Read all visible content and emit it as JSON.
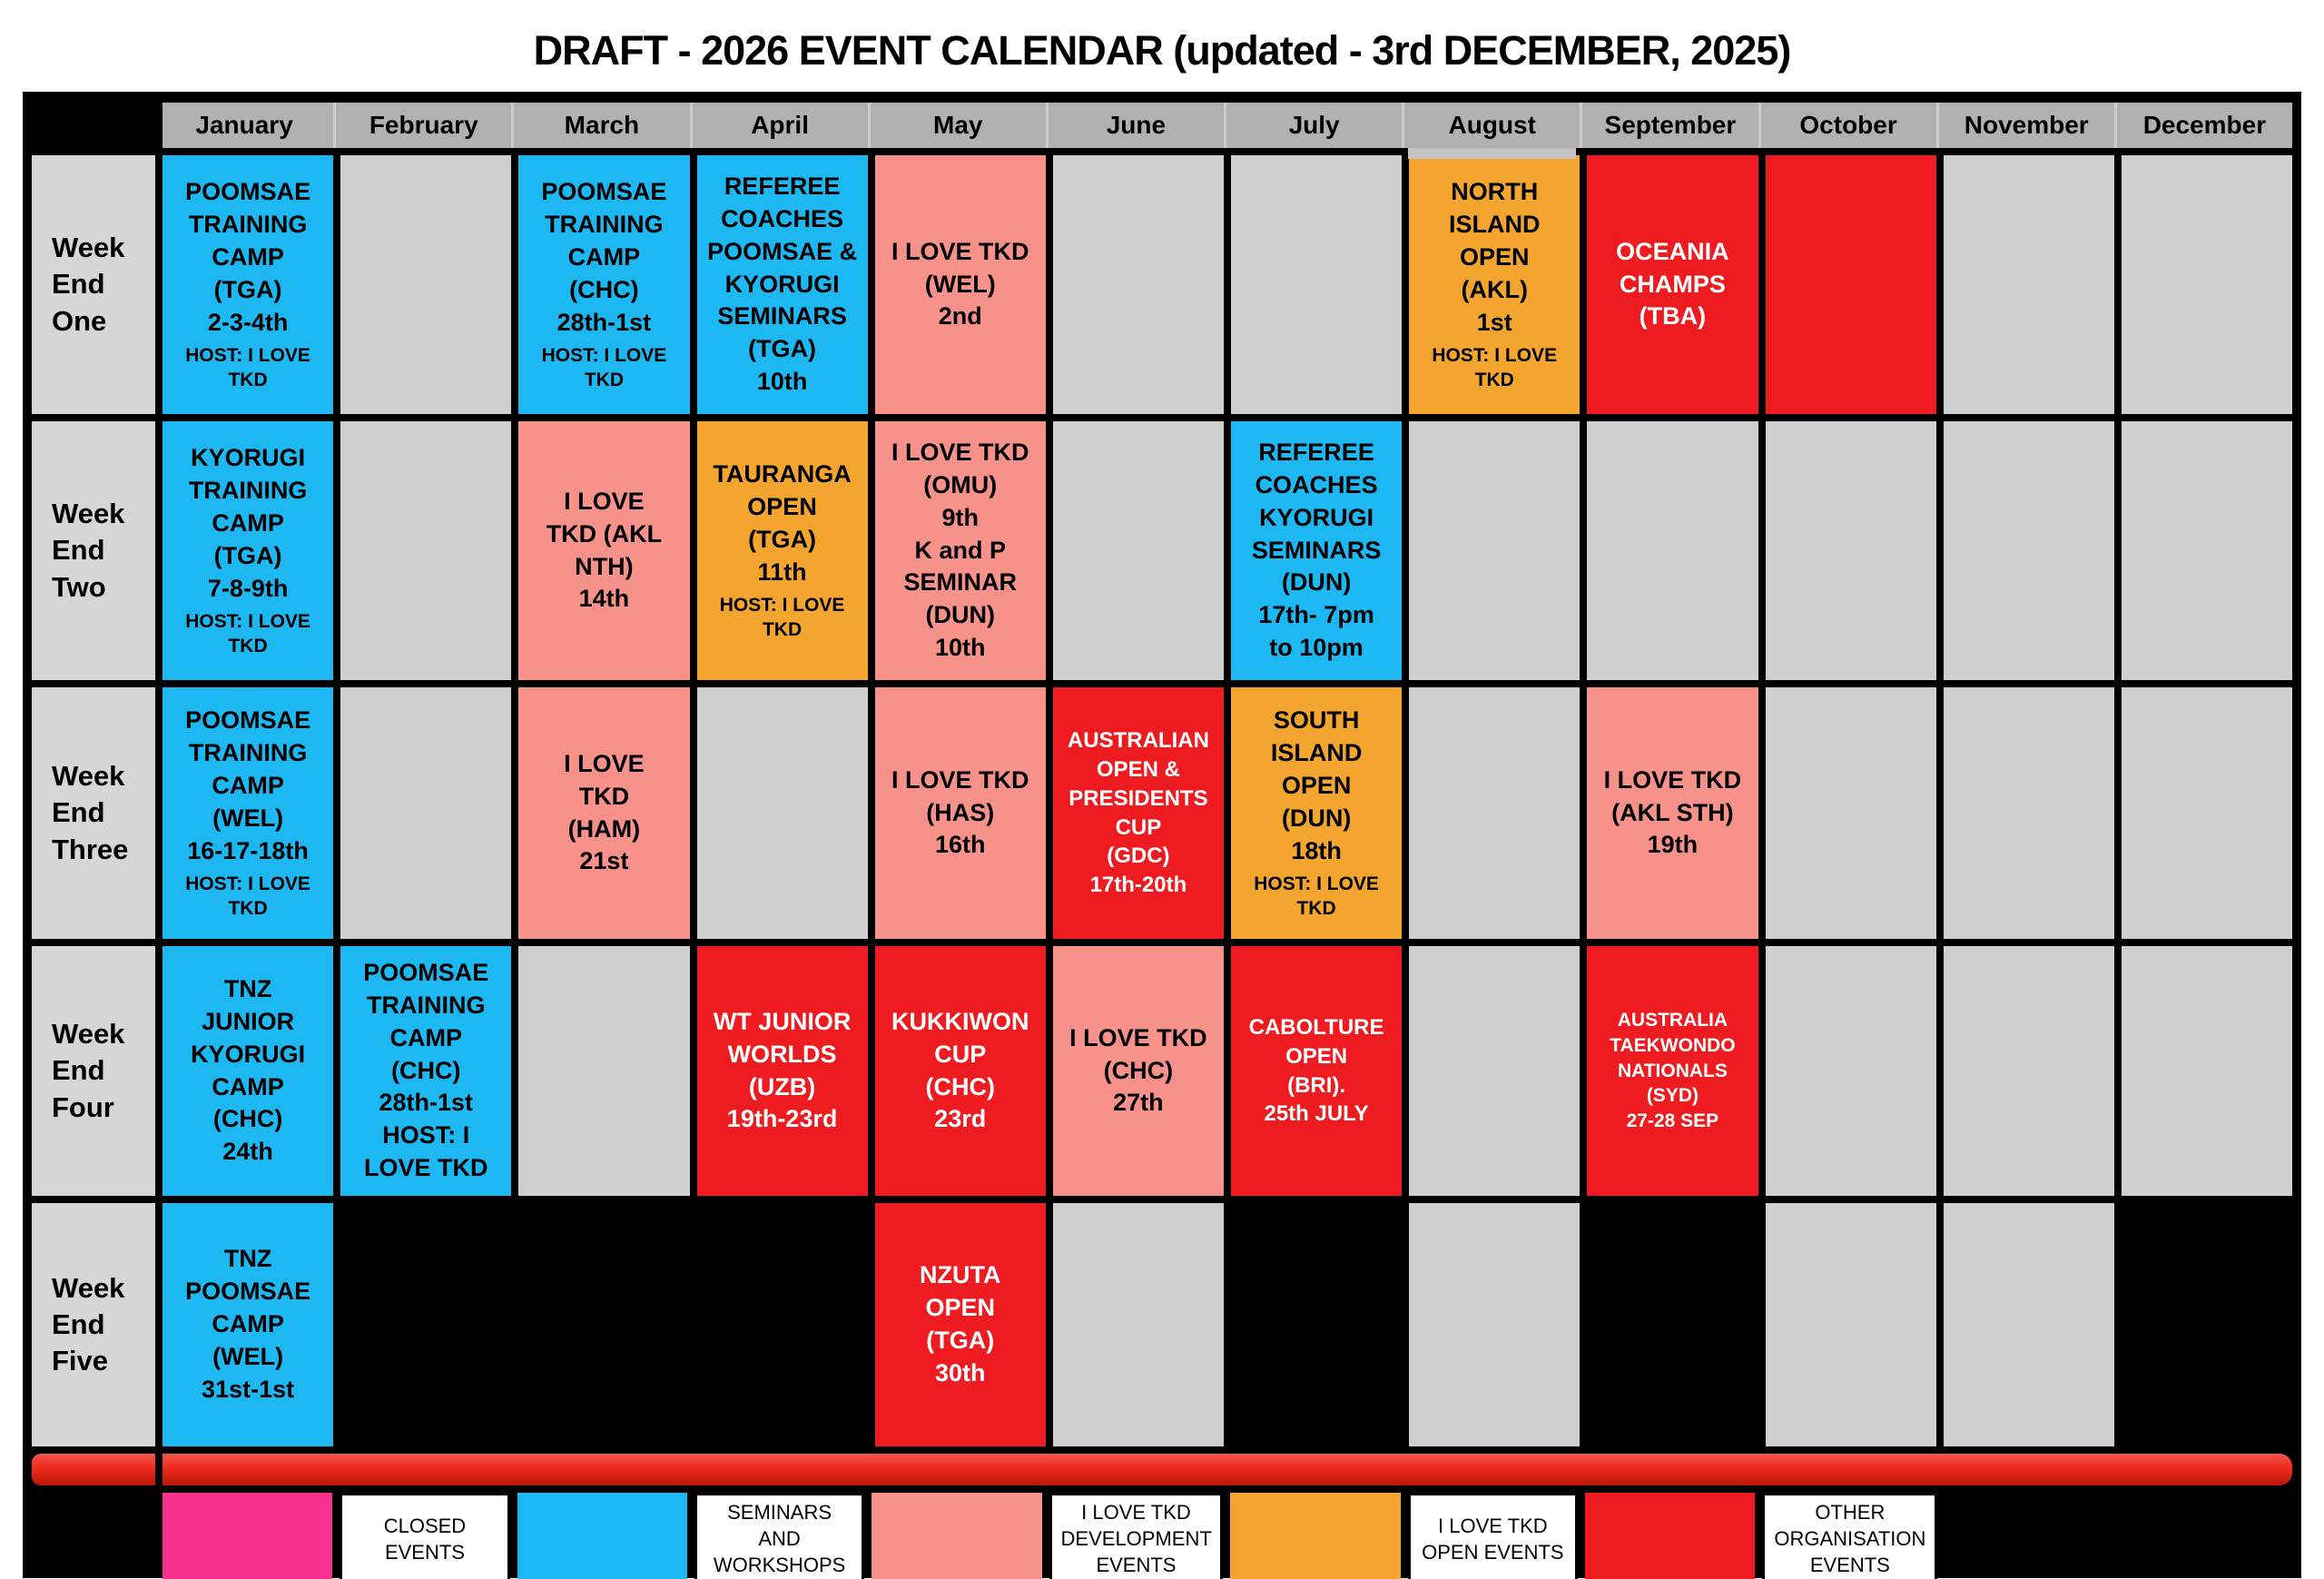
{
  "title": "DRAFT - 2026 EVENT CALENDAR (updated - 3rd DECEMBER, 2025)",
  "months": [
    "January",
    "February",
    "March",
    "April",
    "May",
    "June",
    "July",
    "August",
    "September",
    "October",
    "November",
    "December"
  ],
  "colors": {
    "blue": "#1db7f2",
    "salmon": "#f7928a",
    "orange": "#f4a52f",
    "red": "#ee1c20",
    "magenta": "#f7318f",
    "grey": "#cfcfcf",
    "black": "#000000"
  },
  "rows": [
    {
      "label": "Week\nEnd\nOne",
      "cells": [
        {
          "color": "blue",
          "text": "POOMSAE\nTRAINING\nCAMP\n(TGA)\n2-3-4th",
          "host": "HOST: I LOVE TKD"
        },
        {
          "color": "grey"
        },
        {
          "color": "blue",
          "text": "POOMSAE\nTRAINING\nCAMP\n(CHC)\n28th-1st",
          "host": "HOST: I LOVE TKD"
        },
        {
          "color": "blue",
          "text": "REFEREE\nCOACHES\nPOOMSAE &\nKYORUGI\nSEMINARS\n(TGA)\n10th"
        },
        {
          "color": "salmon",
          "text": "I LOVE TKD\n(WEL)\n2nd"
        },
        {
          "color": "grey"
        },
        {
          "color": "grey"
        },
        {
          "color": "orange",
          "text": "NORTH\nISLAND\nOPEN\n(AKL)\n1st",
          "host": "HOST: I LOVE TKD"
        },
        {
          "color": "red",
          "text": "OCEANIA\nCHAMPS\n(TBA)"
        },
        {
          "color": "red"
        },
        {
          "color": "grey"
        },
        {
          "color": "grey"
        }
      ]
    },
    {
      "label": "Week\nEnd\nTwo",
      "cells": [
        {
          "color": "blue",
          "text": "KYORUGI\nTRAINING\nCAMP\n(TGA)\n7-8-9th",
          "host": "HOST: I LOVE TKD"
        },
        {
          "color": "grey"
        },
        {
          "color": "salmon",
          "text": "I LOVE\nTKD (AKL\nNTH)\n14th"
        },
        {
          "color": "orange",
          "text": "TAURANGA\nOPEN\n(TGA)\n11th",
          "host": "HOST: I LOVE TKD"
        },
        {
          "color": "salmon",
          "text": "I LOVE TKD\n(OMU)\n9th\nK and P\nSEMINAR\n(DUN)\n10th"
        },
        {
          "color": "grey"
        },
        {
          "color": "blue",
          "text": "REFEREE\nCOACHES\nKYORUGI\nSEMINARS\n(DUN)\n17th- 7pm\nto 10pm"
        },
        {
          "color": "grey"
        },
        {
          "color": "grey"
        },
        {
          "color": "grey"
        },
        {
          "color": "grey"
        },
        {
          "color": "grey"
        }
      ]
    },
    {
      "label": "Week\nEnd\nThree",
      "cells": [
        {
          "color": "blue",
          "text": "POOMSAE\nTRAINING\nCAMP\n(WEL)\n16-17-18th",
          "host": "HOST: I LOVE TKD"
        },
        {
          "color": "grey"
        },
        {
          "color": "salmon",
          "text": "I LOVE\nTKD\n(HAM)\n21st"
        },
        {
          "color": "grey"
        },
        {
          "color": "salmon",
          "text": "I LOVE TKD\n(HAS)\n16th"
        },
        {
          "color": "red",
          "size": "sm",
          "text": "AUSTRALIAN\nOPEN &\nPRESIDENTS\nCUP\n(GDC)\n17th-20th"
        },
        {
          "color": "orange",
          "text": "SOUTH\nISLAND\nOPEN\n(DUN)\n18th",
          "host": "HOST: I LOVE TKD"
        },
        {
          "color": "grey"
        },
        {
          "color": "salmon",
          "text": "I LOVE TKD\n(AKL STH)\n19th"
        },
        {
          "color": "grey"
        },
        {
          "color": "grey"
        },
        {
          "color": "grey"
        }
      ]
    },
    {
      "label": "Week\nEnd\nFour",
      "cells": [
        {
          "color": "blue",
          "text": "TNZ\nJUNIOR\nKYORUGI\nCAMP\n(CHC)\n24th"
        },
        {
          "color": "blue",
          "text": "POOMSAE\nTRAINING\nCAMP\n(CHC)\n28th-1st\nHOST: I\nLOVE TKD"
        },
        {
          "color": "grey"
        },
        {
          "color": "red",
          "text": "WT JUNIOR\nWORLDS\n(UZB)\n19th-23rd"
        },
        {
          "color": "red",
          "text": "KUKKIWON\nCUP\n(CHC)\n23rd"
        },
        {
          "color": "salmon",
          "text": "I LOVE TKD\n(CHC)\n27th"
        },
        {
          "color": "red",
          "size": "sm",
          "text": "CABOLTURE\nOPEN\n(BRI).\n25th JULY"
        },
        {
          "color": "grey"
        },
        {
          "color": "red",
          "size": "xs",
          "text": "AUSTRALIA\nTAEKWONDO\nNATIONALS\n(SYD)\n27-28 SEP"
        },
        {
          "color": "grey"
        },
        {
          "color": "grey"
        },
        {
          "color": "grey"
        }
      ]
    },
    {
      "label": "Week\nEnd\nFive",
      "cells": [
        {
          "color": "blue",
          "text": "TNZ\nPOOMSAE\nCAMP\n(WEL)\n31st-1st"
        },
        {
          "color": "black"
        },
        {
          "color": "black"
        },
        {
          "color": "black"
        },
        {
          "color": "red",
          "text": "NZUTA\nOPEN\n(TGA)\n30th"
        },
        {
          "color": "grey"
        },
        {
          "color": "black"
        },
        {
          "color": "grey"
        },
        {
          "color": "black"
        },
        {
          "color": "grey"
        },
        {
          "color": "grey"
        },
        {
          "color": "black"
        }
      ]
    }
  ],
  "legend": [
    {
      "type": "swatch",
      "color": "magenta"
    },
    {
      "type": "label",
      "label": "CLOSED EVENTS"
    },
    {
      "type": "swatch",
      "color": "blue"
    },
    {
      "type": "label",
      "label": "SEMINARS AND WORKSHOPS"
    },
    {
      "type": "swatch",
      "color": "salmon"
    },
    {
      "type": "label",
      "label": "I LOVE TKD DEVELOPMENT EVENTS"
    },
    {
      "type": "swatch",
      "color": "orange"
    },
    {
      "type": "label",
      "label": "I LOVE TKD OPEN EVENTS"
    },
    {
      "type": "swatch",
      "color": "red"
    },
    {
      "type": "label",
      "label": "OTHER ORGANISATION EVENTS"
    },
    {
      "type": "empty"
    },
    {
      "type": "empty"
    }
  ]
}
